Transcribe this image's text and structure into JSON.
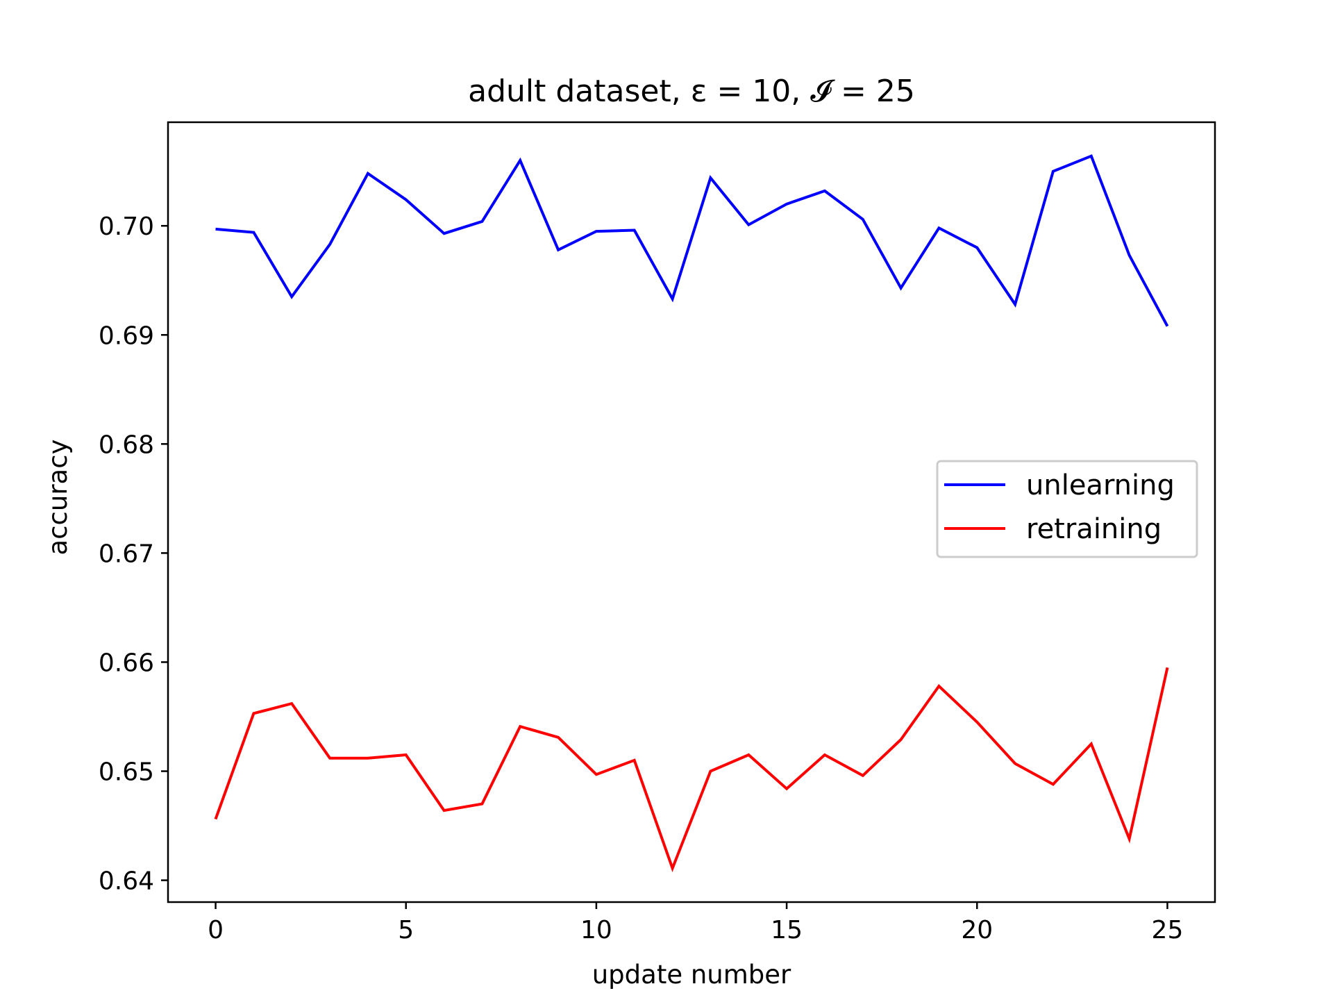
{
  "chart_data": {
    "type": "line",
    "title": "adult dataset, ε = 10, 𝓘 = 25",
    "xlabel": "update number",
    "ylabel": "accuracy",
    "xlim": [
      -1.25,
      26.25
    ],
    "ylim": [
      0.638,
      0.7095
    ],
    "xticks": [
      0,
      5,
      10,
      15,
      20,
      25
    ],
    "xtick_labels": [
      "0",
      "5",
      "10",
      "15",
      "20",
      "25"
    ],
    "yticks": [
      0.64,
      0.65,
      0.66,
      0.67,
      0.68,
      0.69,
      0.7
    ],
    "ytick_labels": [
      "0.64",
      "0.65",
      "0.66",
      "0.67",
      "0.68",
      "0.69",
      "0.70"
    ],
    "grid": false,
    "legend_position": "center-right",
    "x": [
      0,
      1,
      2,
      3,
      4,
      5,
      6,
      7,
      8,
      9,
      10,
      11,
      12,
      13,
      14,
      15,
      16,
      17,
      18,
      19,
      20,
      21,
      22,
      23,
      24,
      25
    ],
    "series": [
      {
        "name": "unlearning",
        "color": "#0000ff",
        "values": [
          0.6997,
          0.6994,
          0.6935,
          0.6983,
          0.7048,
          0.7024,
          0.6993,
          0.7004,
          0.706,
          0.6978,
          0.6995,
          0.6996,
          0.6933,
          0.7044,
          0.7001,
          0.702,
          0.7032,
          0.7006,
          0.6943,
          0.6998,
          0.698,
          0.6928,
          0.705,
          0.7064,
          0.6973,
          0.6908
        ]
      },
      {
        "name": "retraining",
        "color": "#ff0000",
        "values": [
          0.6456,
          0.6553,
          0.6562,
          0.6512,
          0.6512,
          0.6515,
          0.6464,
          0.647,
          0.6541,
          0.6531,
          0.6497,
          0.651,
          0.6411,
          0.65,
          0.6515,
          0.6484,
          0.6515,
          0.6496,
          0.6529,
          0.6578,
          0.6545,
          0.6507,
          0.6488,
          0.6525,
          0.6438,
          0.6595
        ]
      }
    ]
  }
}
